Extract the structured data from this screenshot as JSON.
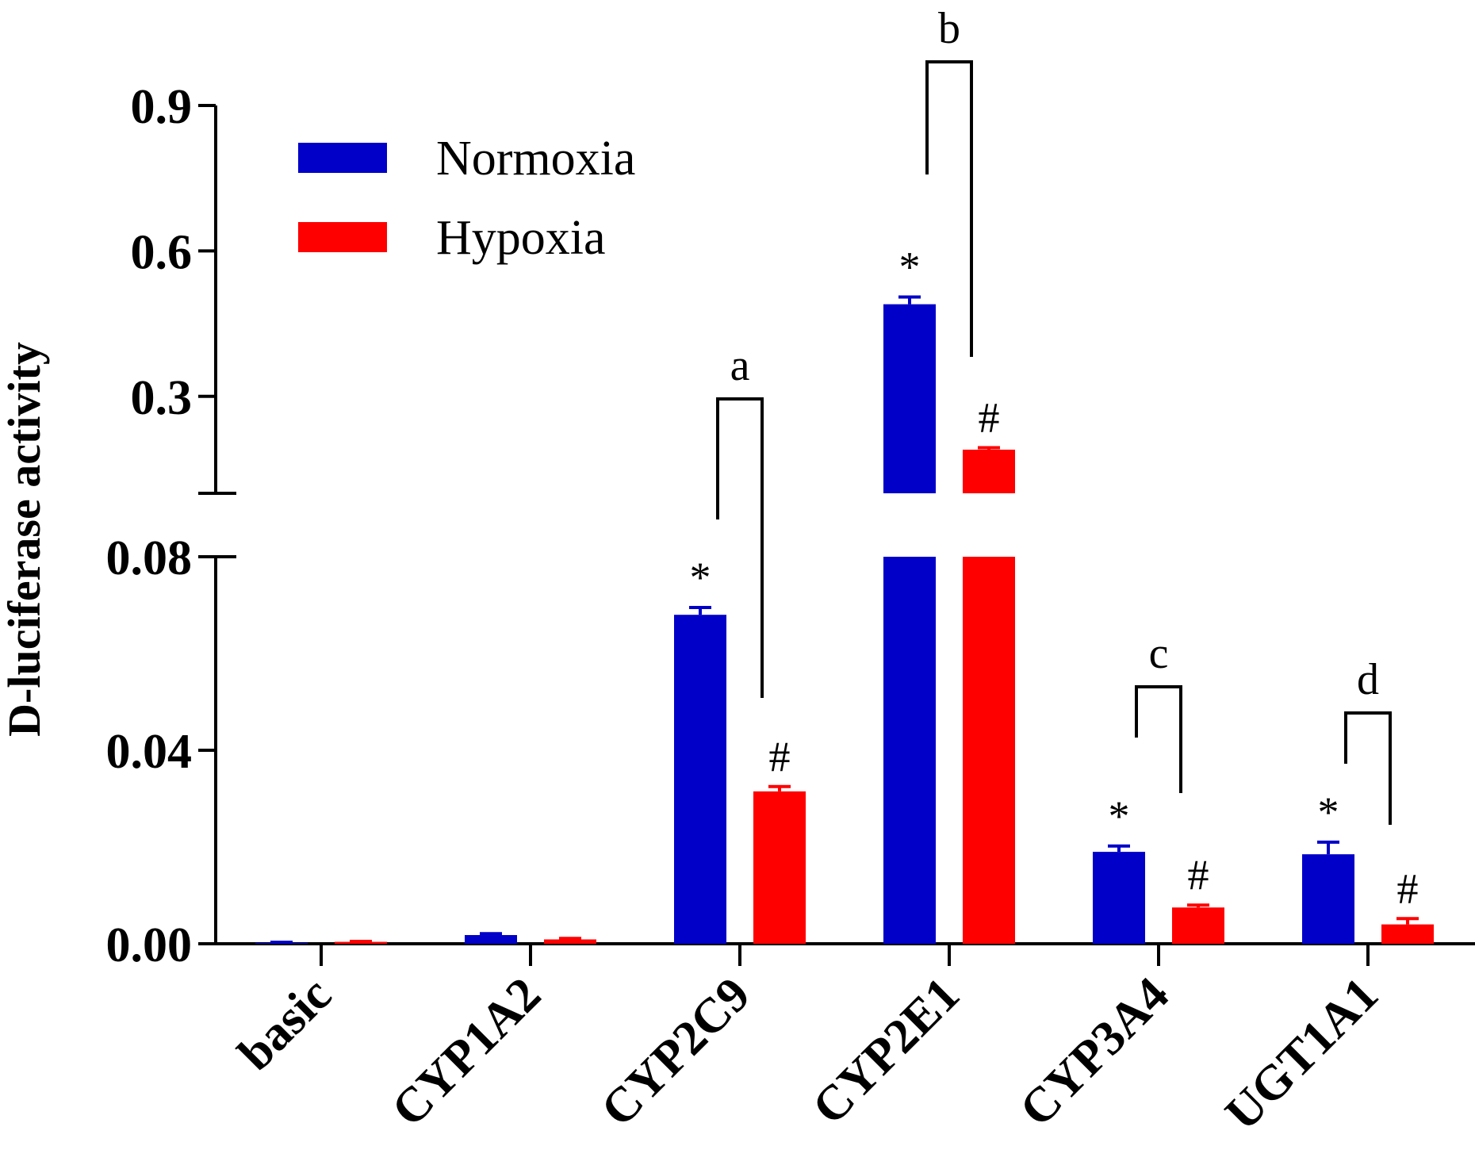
{
  "chart_data": {
    "type": "bar",
    "ylabel": "D-luciferase activity",
    "xlabel": "",
    "categories": [
      "basic",
      "CYP1A2",
      "CYP2C9",
      "CYP2E1",
      "CYP3A4",
      "UGT1A1"
    ],
    "series": [
      {
        "name": "Normoxia",
        "color": "#0000c8",
        "values": [
          0.0002,
          0.0018,
          0.068,
          0.49,
          0.019,
          0.0185
        ],
        "errors": [
          0.0001,
          0.0003,
          0.0015,
          0.015,
          0.0012,
          0.0025
        ],
        "marker": [
          "",
          "",
          "*",
          "*",
          "*",
          "*"
        ]
      },
      {
        "name": "Hypoxia",
        "color": "#ff0000",
        "values": [
          0.0004,
          0.0009,
          0.0315,
          0.19,
          0.0075,
          0.004
        ],
        "errors": [
          0.0001,
          0.0002,
          0.001,
          0.004,
          0.0005,
          0.0012
        ],
        "marker": [
          "",
          "",
          "#",
          "#",
          "#",
          "#"
        ]
      }
    ],
    "y_axis_segments": [
      {
        "ylim": [
          0,
          0.08
        ],
        "ticks": [
          "0.00",
          "0.04",
          "0.08"
        ],
        "tick_values": [
          0,
          0.04,
          0.08
        ]
      },
      {
        "ylim": [
          0.1,
          0.9
        ],
        "ticks": [
          "0.3",
          "0.6",
          "0.9"
        ],
        "tick_values": [
          0.3,
          0.6,
          0.9
        ]
      }
    ],
    "brackets": [
      {
        "label": "a",
        "category": "CYP2C9"
      },
      {
        "label": "b",
        "category": "CYP2E1"
      },
      {
        "label": "c",
        "category": "CYP3A4"
      },
      {
        "label": "d",
        "category": "UGT1A1"
      }
    ],
    "legend_position": "top-left",
    "grid": false
  }
}
